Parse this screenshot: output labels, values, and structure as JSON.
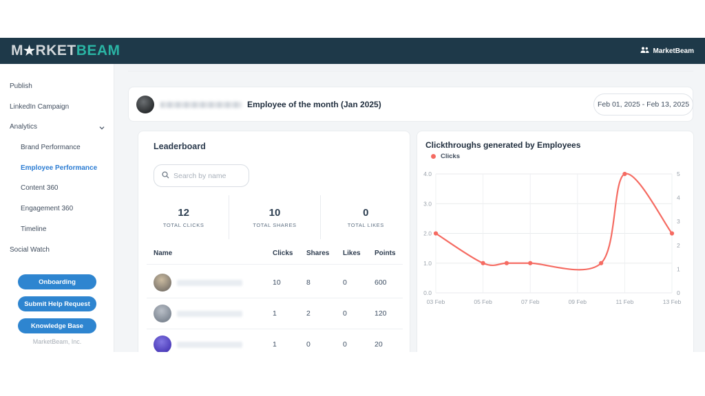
{
  "colors": {
    "header_bg": "#1e3949",
    "logo_gray": "#d3d8db",
    "logo_teal": "#2ab4a4",
    "active_blue": "#2b7cd3",
    "button_blue": "#2e85d0",
    "line_red": "#f56b62",
    "page_bg": "#f3f5f7"
  },
  "header": {
    "logo": {
      "prefix": "M",
      "star": "★",
      "middle": "RKET",
      "suffix": "BEAM"
    },
    "account_label": "MarketBeam"
  },
  "sidebar": {
    "items": [
      {
        "label": "Publish"
      },
      {
        "label": "LinkedIn Campaign"
      },
      {
        "label": "Analytics"
      },
      {
        "label": "Brand Performance"
      },
      {
        "label": "Employee Performance"
      },
      {
        "label": "Content 360"
      },
      {
        "label": "Engagement 360"
      },
      {
        "label": "Timeline"
      },
      {
        "label": "Social Watch"
      }
    ],
    "buttons": [
      {
        "label": "Onboarding"
      },
      {
        "label": "Submit Help Request"
      },
      {
        "label": "Knowledge Base"
      }
    ],
    "footer": "MarketBeam, Inc."
  },
  "banner": {
    "title": "Employee of the month (Jan 2025)",
    "date_range": "Feb 01, 2025 - Feb 13, 2025"
  },
  "leaderboard": {
    "title": "Leaderboard",
    "search_placeholder": "Search by name",
    "stats": [
      {
        "value": "12",
        "label": "TOTAL CLICKS"
      },
      {
        "value": "10",
        "label": "TOTAL SHARES"
      },
      {
        "value": "0",
        "label": "TOTAL LIKES"
      }
    ],
    "columns": [
      "Name",
      "Clicks",
      "Shares",
      "Likes",
      "Points"
    ],
    "rows": [
      {
        "clicks": "10",
        "shares": "8",
        "likes": "0",
        "points": "600"
      },
      {
        "clicks": "1",
        "shares": "2",
        "likes": "0",
        "points": "120"
      },
      {
        "clicks": "1",
        "shares": "0",
        "likes": "0",
        "points": "20"
      }
    ]
  },
  "chart": {
    "title": "Clickthroughs generated by Employees",
    "legend": "Clicks"
  },
  "chart_data": {
    "type": "line",
    "title": "Clickthroughs generated by Employees",
    "series": [
      {
        "name": "Clicks",
        "x_days": [
          3,
          5,
          6,
          7,
          10,
          11,
          13
        ],
        "values": [
          2,
          1,
          1,
          1,
          1,
          4,
          2
        ]
      }
    ],
    "x_tick_days": [
      3,
      5,
      7,
      9,
      11,
      13
    ],
    "x_tick_labels": [
      "03 Feb",
      "05 Feb",
      "07 Feb",
      "09 Feb",
      "11 Feb",
      "13 Feb"
    ],
    "x_range_days": [
      3,
      13
    ],
    "left_axis": {
      "min": 0,
      "max": 4,
      "ticks": [
        "4.0",
        "3.0",
        "2.0",
        "1.0",
        "0.0"
      ]
    },
    "right_axis": {
      "min": 0,
      "max": 5,
      "ticks": [
        "5",
        "4",
        "3",
        "2",
        "1",
        "0"
      ]
    },
    "grid": true,
    "smooth": true,
    "line_color": "#f56b62",
    "legend_position": "top-left"
  }
}
